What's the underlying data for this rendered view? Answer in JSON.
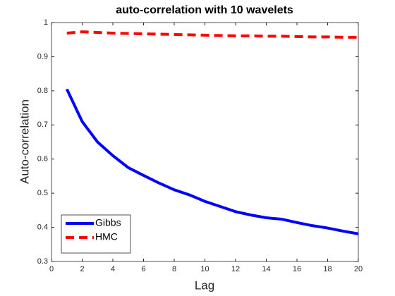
{
  "chart_data": {
    "type": "line",
    "title": "auto-correlation with 10 wavelets",
    "xlabel": "Lag",
    "ylabel": "Auto-correlation",
    "x": [
      1,
      2,
      3,
      4,
      5,
      6,
      7,
      8,
      9,
      10,
      11,
      12,
      13,
      14,
      15,
      16,
      17,
      18,
      19,
      20
    ],
    "series": [
      {
        "name": "Gibbs",
        "color": "#0000ff",
        "line_style": "solid",
        "values": [
          0.805,
          0.71,
          0.65,
          0.61,
          0.575,
          0.552,
          0.53,
          0.51,
          0.495,
          0.476,
          0.461,
          0.446,
          0.436,
          0.428,
          0.424,
          0.414,
          0.405,
          0.398,
          0.389,
          0.381
        ]
      },
      {
        "name": "HMC",
        "color": "#ff0000",
        "line_style": "dashed",
        "values": [
          0.969,
          0.973,
          0.971,
          0.969,
          0.968,
          0.967,
          0.966,
          0.965,
          0.964,
          0.963,
          0.962,
          0.961,
          0.961,
          0.96,
          0.96,
          0.959,
          0.958,
          0.958,
          0.957,
          0.957
        ]
      }
    ],
    "xlim": [
      0,
      20
    ],
    "xticks": [
      0,
      2,
      4,
      6,
      8,
      10,
      12,
      14,
      16,
      18,
      20
    ],
    "ylim": [
      0.3,
      1
    ],
    "yticks": [
      0.3,
      0.4,
      0.5,
      0.6,
      0.7,
      0.8,
      0.9,
      1
    ],
    "legend": "lower left"
  }
}
